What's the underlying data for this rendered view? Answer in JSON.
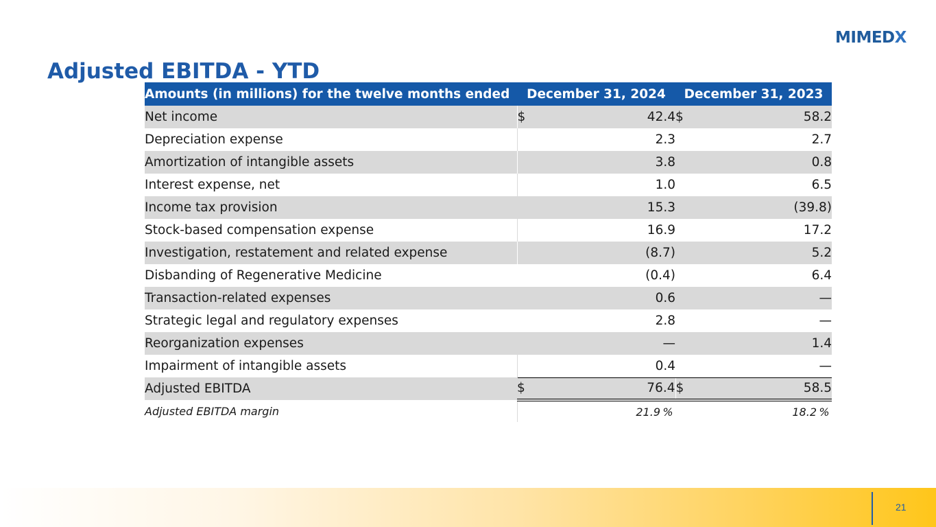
{
  "brand": {
    "logo_text_main": "MIMED",
    "logo_text_x": "X",
    "primary_color": "#1f5ba8",
    "header_color": "#1559a8"
  },
  "title": "Adjusted EBITDA - YTD",
  "table": {
    "header": {
      "label": "Amounts (in millions) for the twelve months ended",
      "col1": "December 31, 2024",
      "col2": "December 31, 2023"
    },
    "rows": [
      {
        "label": "Net income",
        "cur1": "$",
        "v1": "42.4",
        "cur2": "$",
        "v2": "58.2"
      },
      {
        "label": "Depreciation expense",
        "v1": "2.3",
        "v2": "2.7"
      },
      {
        "label": "Amortization of intangible assets",
        "v1": "3.8",
        "v2": "0.8"
      },
      {
        "label": "Interest expense, net",
        "v1": "1.0",
        "v2": "6.5"
      },
      {
        "label": "Income tax provision",
        "v1": "15.3",
        "v2": "(39.8)"
      },
      {
        "label": "Stock-based compensation expense",
        "v1": "16.9",
        "v2": "17.2"
      },
      {
        "label": "Investigation, restatement and related expense",
        "v1": "(8.7)",
        "v2": "5.2"
      },
      {
        "label": "Disbanding of Regenerative Medicine",
        "v1": "(0.4)",
        "v2": "6.4"
      },
      {
        "label": "Transaction-related expenses",
        "v1": "0.6",
        "v2": "—"
      },
      {
        "label": "Strategic legal and regulatory expenses",
        "v1": "2.8",
        "v2": "—"
      },
      {
        "label": "Reorganization expenses",
        "v1": "—",
        "v2": "1.4"
      },
      {
        "label": "Impairment of intangible assets",
        "v1": "0.4",
        "v2": "—"
      }
    ],
    "total": {
      "label": "Adjusted EBITDA",
      "cur1": "$",
      "v1": "76.4",
      "cur2": "$",
      "v2": "58.5"
    },
    "margin": {
      "label": "Adjusted EBITDA margin",
      "v1": "21.9",
      "v2": "18.2",
      "unit": "%"
    }
  },
  "page_number": "21"
}
